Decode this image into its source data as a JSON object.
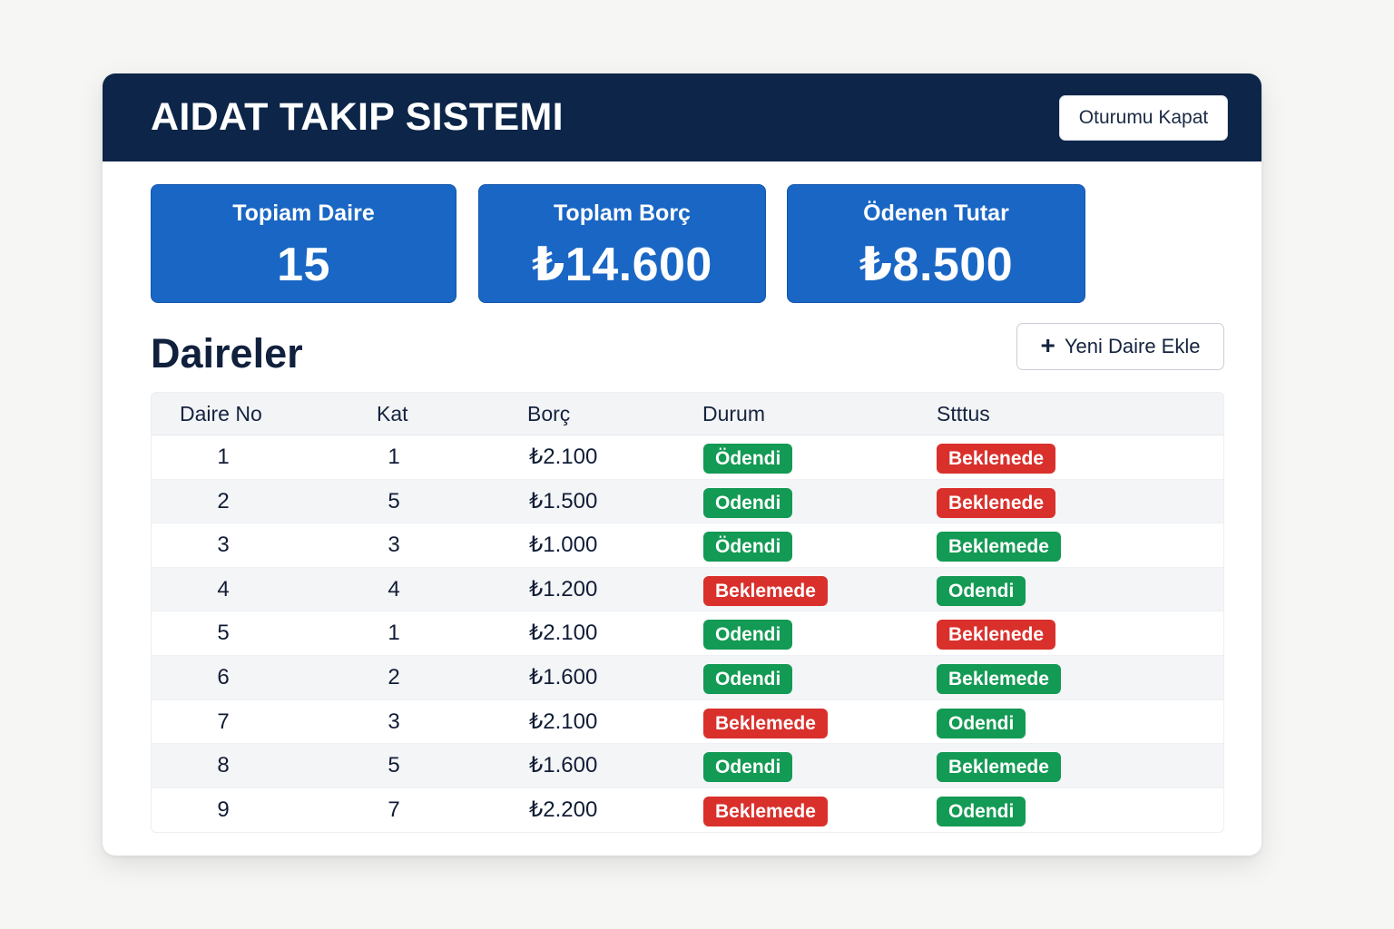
{
  "header": {
    "title": "AIDAT TAKIP SISTEMI",
    "logout_label": "Oturumu Kapat"
  },
  "stats": [
    {
      "label": "Topiam Daire",
      "value": "15"
    },
    {
      "label": "Toplam Borç",
      "value": "₺14.600"
    },
    {
      "label": "Ödenen Tutar",
      "value": "₺8.500"
    }
  ],
  "section": {
    "title": "Daireler",
    "add_label": "Yeni Daire Ekle",
    "add_icon": "plus-icon"
  },
  "table": {
    "columns": [
      "Daire No",
      "Kat",
      "Borç",
      "Durum",
      "Stttus"
    ],
    "rows": [
      {
        "no": "1",
        "kat": "1",
        "borc": "₺2.100",
        "durum": "Ödendi",
        "durum_color": "green",
        "status": "Beklenede",
        "status_color": "red"
      },
      {
        "no": "2",
        "kat": "5",
        "borc": "₺1.500",
        "durum": "Odendi",
        "durum_color": "green",
        "status": "Beklenede",
        "status_color": "red"
      },
      {
        "no": "3",
        "kat": "3",
        "borc": "₺1.000",
        "durum": "Ödendi",
        "durum_color": "green",
        "status": "Beklemede",
        "status_color": "green"
      },
      {
        "no": "4",
        "kat": "4",
        "borc": "₺1.200",
        "durum": "Beklemede",
        "durum_color": "red",
        "status": "Odendi",
        "status_color": "green"
      },
      {
        "no": "5",
        "kat": "1",
        "borc": "₺2.100",
        "durum": "Odendi",
        "durum_color": "green",
        "status": "Beklenede",
        "status_color": "red"
      },
      {
        "no": "6",
        "kat": "2",
        "borc": "₺1.600",
        "durum": "Odendi",
        "durum_color": "green",
        "status": "Beklemede",
        "status_color": "green"
      },
      {
        "no": "7",
        "kat": "3",
        "borc": "₺2.100",
        "durum": "Beklemede",
        "durum_color": "red",
        "status": "Odendi",
        "status_color": "green"
      },
      {
        "no": "8",
        "kat": "5",
        "borc": "₺1.600",
        "durum": "Odendi",
        "durum_color": "green",
        "status": "Beklemede",
        "status_color": "green"
      },
      {
        "no": "9",
        "kat": "7",
        "borc": "₺2.200",
        "durum": "Beklemede",
        "durum_color": "red",
        "status": "Odendi",
        "status_color": "green"
      }
    ]
  },
  "colors": {
    "header_bg": "#0c2548",
    "card_bg": "#1966c4",
    "green": "#139a54",
    "red": "#d9302c"
  }
}
